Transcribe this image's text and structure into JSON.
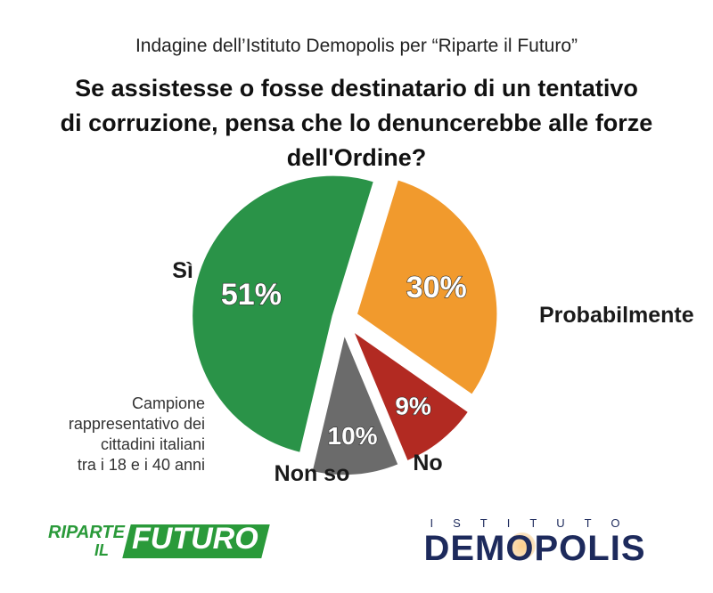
{
  "header": {
    "subtitle": "Indagine dell’Istituto Demopolis per “Riparte il Futuro”",
    "title_line1": "Se assistesse o fosse destinatario di un tentativo",
    "title_line2": "di corruzione, pensa che lo denuncerebbe alle forze dell'Ordine?"
  },
  "note": {
    "line1": "Campione",
    "line2": "rappresentativo dei",
    "line3": "cittadini italiani",
    "line4": "tra i 18 e i 40 anni"
  },
  "logos": {
    "riparte_word": "RIPARTE",
    "riparte_il": "IL",
    "riparte_futuro": "FUTURO",
    "demopolis_top": "ISTITUTO",
    "demopolis_main": "DEMOPOLIS"
  },
  "chart_data": {
    "type": "pie",
    "title": "Se assistesse o fosse destinatario di un tentativo di corruzione, pensa che lo denuncerebbe alle forze dell'Ordine?",
    "slices": [
      {
        "label": "Probabilmente",
        "value": 30,
        "value_label": "30%",
        "color": "#f19a2d"
      },
      {
        "label": "No",
        "value": 9,
        "value_label": "9%",
        "color": "#b22a22"
      },
      {
        "label": "Non so",
        "value": 10,
        "value_label": "10%",
        "color": "#6b6b6b"
      },
      {
        "label": "Sì",
        "value": 51,
        "value_label": "51%",
        "color": "#2a9348"
      }
    ],
    "exploded": true,
    "legend": "none"
  }
}
